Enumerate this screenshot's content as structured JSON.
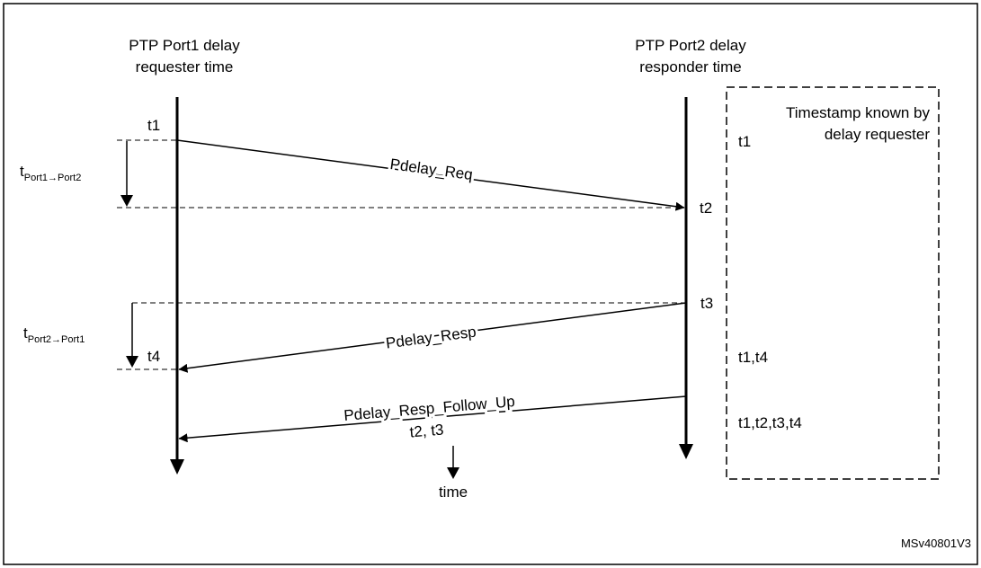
{
  "timelines": {
    "port1": {
      "label_line1": "PTP Port1 delay",
      "label_line2": "requester time"
    },
    "port2": {
      "label_line1": "PTP Port2 delay",
      "label_line2": "responder time"
    }
  },
  "timestamps": {
    "t1": "t1",
    "t2": "t2",
    "t3": "t3",
    "t4": "t4"
  },
  "intervals": {
    "forward": {
      "main": "t",
      "sub": "Port1→Port2"
    },
    "reverse": {
      "main": "t",
      "sub": "Port2→Port1"
    }
  },
  "messages": {
    "pdelay_req": "Pdelay_Req",
    "pdelay_resp": "Pdelay_Resp",
    "pdelay_resp_follow_up": "Pdelay_Resp_Follow_Up",
    "follow_up_payload": "t2, t3"
  },
  "time_axis": {
    "label": "time"
  },
  "known_box": {
    "title_line1": "Timestamp known by",
    "title_line2": "delay requester",
    "entries": [
      "t1",
      "t1,t4",
      "t1,t2,t3,t4"
    ]
  },
  "figure_code": "MSv40801V3",
  "colors": {
    "line": "#000000",
    "background": "#ffffff"
  }
}
